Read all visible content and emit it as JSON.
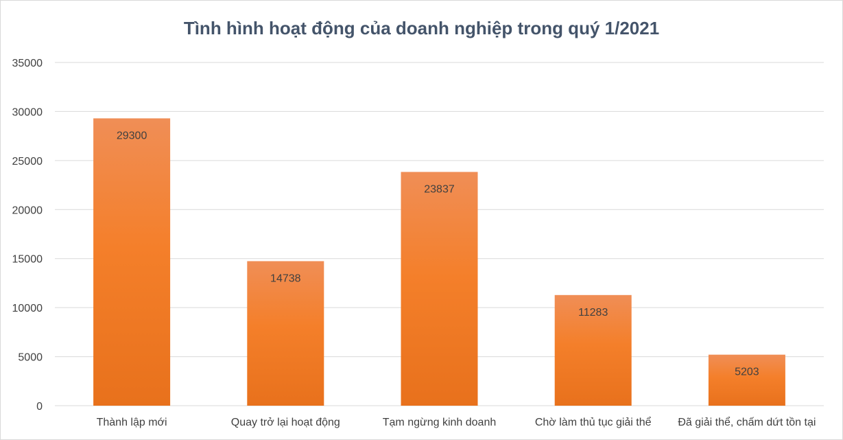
{
  "chart_data": {
    "type": "bar",
    "title": "Tình hình hoạt động của doanh nghiệp trong quý 1/2021",
    "categories": [
      "Thành lập mới",
      "Quay trở lại hoạt động",
      "Tạm ngừng kinh doanh",
      "Chờ làm thủ tục giải thể",
      "Đã giải thể, chấm dứt tồn tại"
    ],
    "values": [
      29300,
      14738,
      23837,
      11283,
      5203
    ],
    "ylim": [
      0,
      35000
    ],
    "yticks": [
      "0",
      "5000",
      "10000",
      "15000",
      "20000",
      "25000",
      "30000",
      "35000"
    ],
    "grid": true,
    "data_labels": true,
    "bar_color": "#f0812a",
    "bar_color_top": "#f08e56",
    "bar_color_bottom": "#e8711c"
  }
}
